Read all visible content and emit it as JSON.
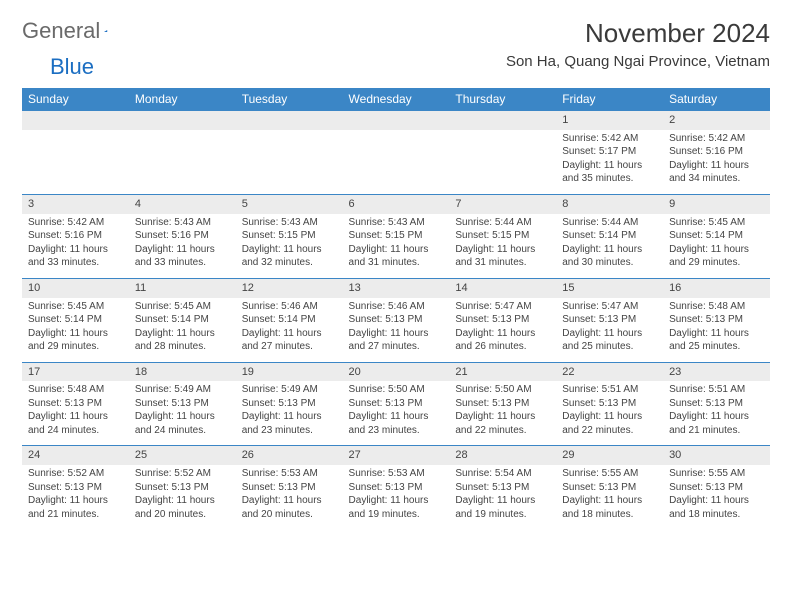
{
  "brand": {
    "part1": "General",
    "part2": "Blue"
  },
  "header": {
    "month_title": "November 2024",
    "location": "Son Ha, Quang Ngai Province, Vietnam"
  },
  "colors": {
    "header_bg": "#3b86c6",
    "header_text": "#ffffff",
    "daynum_bg": "#ececec",
    "border": "#3b86c6",
    "text": "#3a3a3a"
  },
  "day_labels": [
    "Sunday",
    "Monday",
    "Tuesday",
    "Wednesday",
    "Thursday",
    "Friday",
    "Saturday"
  ],
  "weeks": [
    [
      {
        "n": "",
        "sr": "",
        "ss": "",
        "dl": ""
      },
      {
        "n": "",
        "sr": "",
        "ss": "",
        "dl": ""
      },
      {
        "n": "",
        "sr": "",
        "ss": "",
        "dl": ""
      },
      {
        "n": "",
        "sr": "",
        "ss": "",
        "dl": ""
      },
      {
        "n": "",
        "sr": "",
        "ss": "",
        "dl": ""
      },
      {
        "n": "1",
        "sr": "Sunrise: 5:42 AM",
        "ss": "Sunset: 5:17 PM",
        "dl": "Daylight: 11 hours and 35 minutes."
      },
      {
        "n": "2",
        "sr": "Sunrise: 5:42 AM",
        "ss": "Sunset: 5:16 PM",
        "dl": "Daylight: 11 hours and 34 minutes."
      }
    ],
    [
      {
        "n": "3",
        "sr": "Sunrise: 5:42 AM",
        "ss": "Sunset: 5:16 PM",
        "dl": "Daylight: 11 hours and 33 minutes."
      },
      {
        "n": "4",
        "sr": "Sunrise: 5:43 AM",
        "ss": "Sunset: 5:16 PM",
        "dl": "Daylight: 11 hours and 33 minutes."
      },
      {
        "n": "5",
        "sr": "Sunrise: 5:43 AM",
        "ss": "Sunset: 5:15 PM",
        "dl": "Daylight: 11 hours and 32 minutes."
      },
      {
        "n": "6",
        "sr": "Sunrise: 5:43 AM",
        "ss": "Sunset: 5:15 PM",
        "dl": "Daylight: 11 hours and 31 minutes."
      },
      {
        "n": "7",
        "sr": "Sunrise: 5:44 AM",
        "ss": "Sunset: 5:15 PM",
        "dl": "Daylight: 11 hours and 31 minutes."
      },
      {
        "n": "8",
        "sr": "Sunrise: 5:44 AM",
        "ss": "Sunset: 5:14 PM",
        "dl": "Daylight: 11 hours and 30 minutes."
      },
      {
        "n": "9",
        "sr": "Sunrise: 5:45 AM",
        "ss": "Sunset: 5:14 PM",
        "dl": "Daylight: 11 hours and 29 minutes."
      }
    ],
    [
      {
        "n": "10",
        "sr": "Sunrise: 5:45 AM",
        "ss": "Sunset: 5:14 PM",
        "dl": "Daylight: 11 hours and 29 minutes."
      },
      {
        "n": "11",
        "sr": "Sunrise: 5:45 AM",
        "ss": "Sunset: 5:14 PM",
        "dl": "Daylight: 11 hours and 28 minutes."
      },
      {
        "n": "12",
        "sr": "Sunrise: 5:46 AM",
        "ss": "Sunset: 5:14 PM",
        "dl": "Daylight: 11 hours and 27 minutes."
      },
      {
        "n": "13",
        "sr": "Sunrise: 5:46 AM",
        "ss": "Sunset: 5:13 PM",
        "dl": "Daylight: 11 hours and 27 minutes."
      },
      {
        "n": "14",
        "sr": "Sunrise: 5:47 AM",
        "ss": "Sunset: 5:13 PM",
        "dl": "Daylight: 11 hours and 26 minutes."
      },
      {
        "n": "15",
        "sr": "Sunrise: 5:47 AM",
        "ss": "Sunset: 5:13 PM",
        "dl": "Daylight: 11 hours and 25 minutes."
      },
      {
        "n": "16",
        "sr": "Sunrise: 5:48 AM",
        "ss": "Sunset: 5:13 PM",
        "dl": "Daylight: 11 hours and 25 minutes."
      }
    ],
    [
      {
        "n": "17",
        "sr": "Sunrise: 5:48 AM",
        "ss": "Sunset: 5:13 PM",
        "dl": "Daylight: 11 hours and 24 minutes."
      },
      {
        "n": "18",
        "sr": "Sunrise: 5:49 AM",
        "ss": "Sunset: 5:13 PM",
        "dl": "Daylight: 11 hours and 24 minutes."
      },
      {
        "n": "19",
        "sr": "Sunrise: 5:49 AM",
        "ss": "Sunset: 5:13 PM",
        "dl": "Daylight: 11 hours and 23 minutes."
      },
      {
        "n": "20",
        "sr": "Sunrise: 5:50 AM",
        "ss": "Sunset: 5:13 PM",
        "dl": "Daylight: 11 hours and 23 minutes."
      },
      {
        "n": "21",
        "sr": "Sunrise: 5:50 AM",
        "ss": "Sunset: 5:13 PM",
        "dl": "Daylight: 11 hours and 22 minutes."
      },
      {
        "n": "22",
        "sr": "Sunrise: 5:51 AM",
        "ss": "Sunset: 5:13 PM",
        "dl": "Daylight: 11 hours and 22 minutes."
      },
      {
        "n": "23",
        "sr": "Sunrise: 5:51 AM",
        "ss": "Sunset: 5:13 PM",
        "dl": "Daylight: 11 hours and 21 minutes."
      }
    ],
    [
      {
        "n": "24",
        "sr": "Sunrise: 5:52 AM",
        "ss": "Sunset: 5:13 PM",
        "dl": "Daylight: 11 hours and 21 minutes."
      },
      {
        "n": "25",
        "sr": "Sunrise: 5:52 AM",
        "ss": "Sunset: 5:13 PM",
        "dl": "Daylight: 11 hours and 20 minutes."
      },
      {
        "n": "26",
        "sr": "Sunrise: 5:53 AM",
        "ss": "Sunset: 5:13 PM",
        "dl": "Daylight: 11 hours and 20 minutes."
      },
      {
        "n": "27",
        "sr": "Sunrise: 5:53 AM",
        "ss": "Sunset: 5:13 PM",
        "dl": "Daylight: 11 hours and 19 minutes."
      },
      {
        "n": "28",
        "sr": "Sunrise: 5:54 AM",
        "ss": "Sunset: 5:13 PM",
        "dl": "Daylight: 11 hours and 19 minutes."
      },
      {
        "n": "29",
        "sr": "Sunrise: 5:55 AM",
        "ss": "Sunset: 5:13 PM",
        "dl": "Daylight: 11 hours and 18 minutes."
      },
      {
        "n": "30",
        "sr": "Sunrise: 5:55 AM",
        "ss": "Sunset: 5:13 PM",
        "dl": "Daylight: 11 hours and 18 minutes."
      }
    ]
  ]
}
